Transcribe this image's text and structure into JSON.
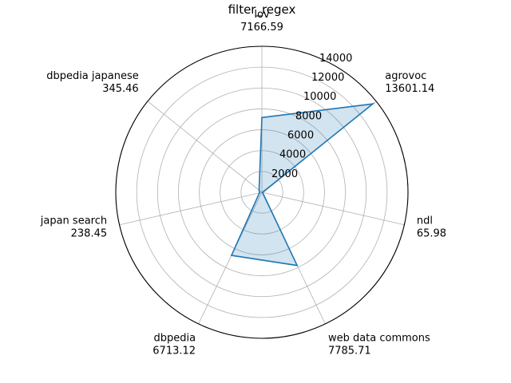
{
  "chart_data": {
    "type": "radar",
    "title": "filter_regex",
    "categories": [
      "lov",
      "agrovoc",
      "ndl",
      "web data commons",
      "dbpedia",
      "japan search",
      "dbpedia japanese"
    ],
    "values": [
      7166.59,
      13601.14,
      65.98,
      7785.71,
      6713.12,
      238.45,
      345.46
    ],
    "value_labels": [
      "7166.59",
      "13601.14",
      "65.98",
      "7785.71",
      "6713.12",
      "238.45",
      "345.46"
    ],
    "rlim": [
      0,
      14000
    ],
    "rticks": [
      2000,
      4000,
      6000,
      8000,
      10000,
      12000,
      14000
    ],
    "rtick_labels": [
      "2000",
      "4000",
      "6000",
      "8000",
      "10000",
      "12000",
      "14000"
    ],
    "grid": true,
    "colors": {
      "line": "#1f77b4",
      "fill": "#1f77b4",
      "grid": "#b0b0b0",
      "frame": "#000000"
    }
  }
}
